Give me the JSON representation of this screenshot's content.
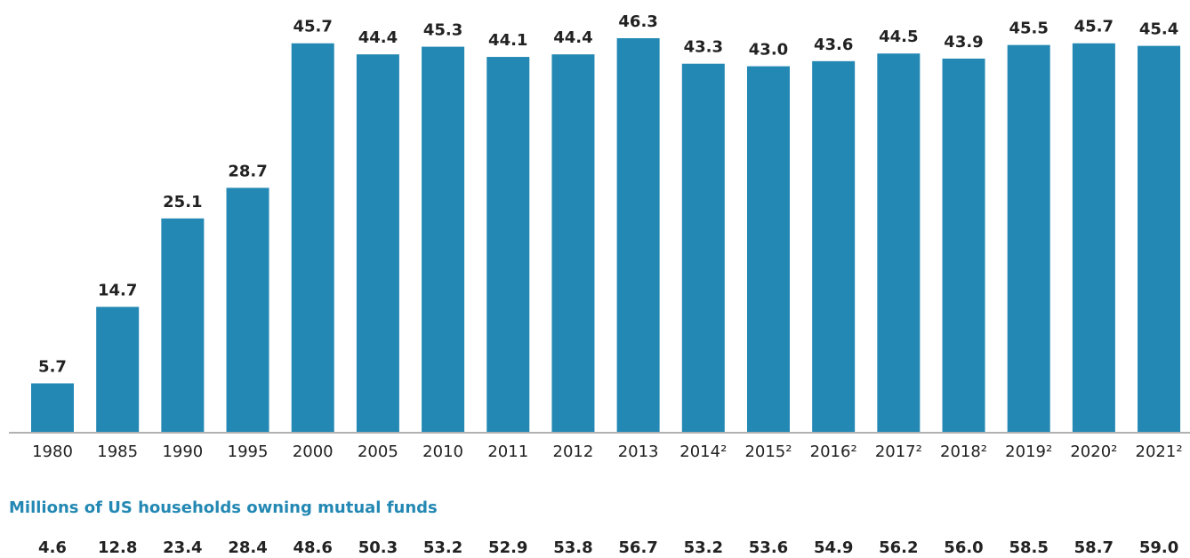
{
  "chart_data": {
    "type": "bar",
    "categories": [
      "1980",
      "1985",
      "1990",
      "1995",
      "2000",
      "2005",
      "2010",
      "2011",
      "2012",
      "2013",
      "2014²",
      "2015²",
      "2016²",
      "2017²",
      "2018²",
      "2019²",
      "2020²",
      "2021²"
    ],
    "values": [
      5.7,
      14.7,
      25.1,
      28.7,
      45.7,
      44.4,
      45.3,
      44.1,
      44.4,
      46.3,
      43.3,
      43,
      43.6,
      44.5,
      43.9,
      45.5,
      45.7,
      45.4
    ],
    "value_labels": [
      "5.7",
      "14.7",
      "25.1",
      "28.7",
      "45.7",
      "44.4",
      "45.3",
      "44.1",
      "44.4",
      "46.3",
      "43.3",
      "43.0",
      "43.6",
      "44.5",
      "43.9",
      "45.5",
      "45.7",
      "45.4"
    ],
    "color": "#2388b3",
    "households": {
      "title": "Millions of US households owning mutual funds",
      "values": [
        "4.6",
        "12.8",
        "23.4",
        "28.4",
        "48.6",
        "50.3",
        "53.2",
        "52.9",
        "53.8",
        "56.7",
        "53.2",
        "53.6",
        "54.9",
        "56.2",
        "56.0",
        "58.5",
        "58.7",
        "59.0"
      ]
    }
  }
}
